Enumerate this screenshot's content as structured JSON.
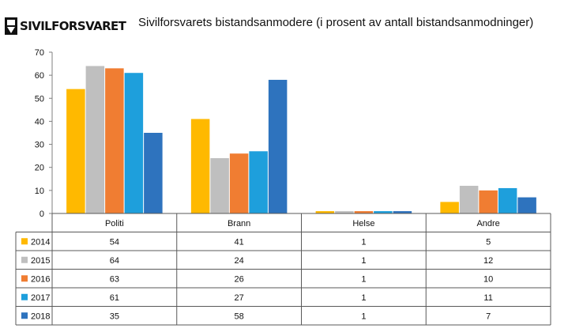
{
  "logo": {
    "text": "SIVILFORSVARET"
  },
  "chart_data": {
    "type": "bar",
    "title": "Sivilforsvarets  bistandsanmodere (i prosent av antall bistandsanmodninger)",
    "categories": [
      "Politi",
      "Brann",
      "Helse",
      "Andre"
    ],
    "series": [
      {
        "name": "2014",
        "color": "#FFB900",
        "values": [
          54,
          41,
          1,
          5
        ]
      },
      {
        "name": "2015",
        "color": "#BFBFBF",
        "values": [
          64,
          24,
          1,
          12
        ]
      },
      {
        "name": "2016",
        "color": "#F07D32",
        "values": [
          63,
          26,
          1,
          10
        ]
      },
      {
        "name": "2017",
        "color": "#1E9FDC",
        "values": [
          61,
          27,
          1,
          11
        ]
      },
      {
        "name": "2018",
        "color": "#2E73BE",
        "values": [
          35,
          58,
          1,
          7
        ]
      }
    ],
    "ylim": [
      0,
      70
    ],
    "yticks": [
      0,
      10,
      20,
      30,
      40,
      50,
      60,
      70
    ],
    "grid": false,
    "legend": "data-table-below"
  }
}
